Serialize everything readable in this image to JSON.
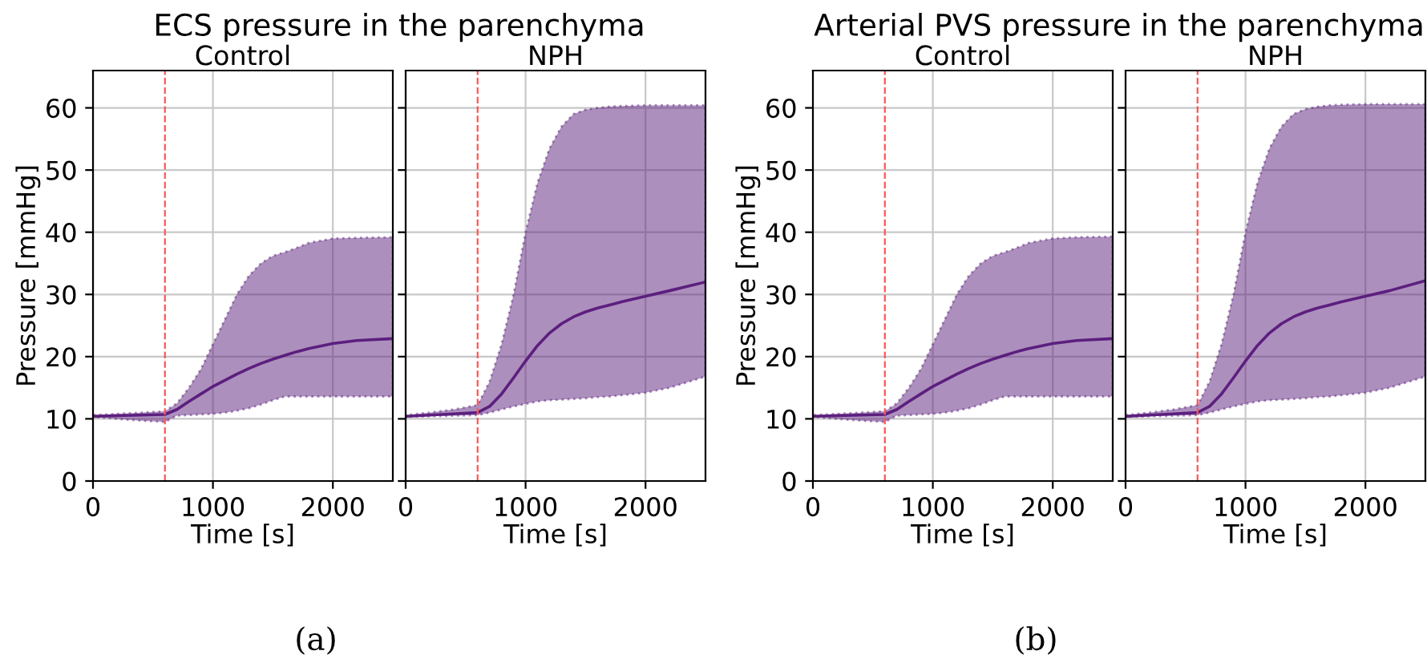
{
  "chart_data": [
    {
      "type": "line",
      "title": "ECS pressure in the parenchyma",
      "subtitle": "Control",
      "xlabel": "Time [s]",
      "ylabel": "Pressure [mmHg]",
      "annotations": [
        "(a)"
      ],
      "xlim": [
        0,
        2500
      ],
      "ylim": [
        0,
        66
      ],
      "xticks": [
        0,
        1000,
        2000
      ],
      "yticks": [
        0,
        10,
        20,
        30,
        40,
        50,
        60
      ],
      "grid": true,
      "x": [
        0,
        200,
        400,
        600,
        700,
        800,
        900,
        1000,
        1100,
        1200,
        1300,
        1400,
        1500,
        1600,
        1700,
        1800,
        2000,
        2200,
        2500
      ],
      "series": [
        {
          "color": "#5c1f7e",
          "values": [
            10.4,
            10.5,
            10.6,
            10.7,
            11.5,
            12.8,
            14.0,
            15.2,
            16.2,
            17.2,
            18.1,
            18.9,
            19.6,
            20.2,
            20.8,
            21.3,
            22.1,
            22.6,
            22.9
          ],
          "upper": [
            10.6,
            10.8,
            11.0,
            11.2,
            12.5,
            15.0,
            18.0,
            22.0,
            26.0,
            30.0,
            33.0,
            35.0,
            36.2,
            36.8,
            37.5,
            38.3,
            39.0,
            39.1,
            39.2
          ],
          "lower": [
            10.3,
            10.0,
            9.7,
            9.5,
            10.5,
            10.6,
            10.7,
            10.8,
            11.0,
            11.3,
            11.7,
            12.3,
            13.0,
            13.6,
            13.6,
            13.6,
            13.6,
            13.6,
            13.6
          ]
        }
      ],
      "ref_lines": [
        {
          "axis": "x",
          "value": 600,
          "color": "#ff5555",
          "line_style": "dashed"
        }
      ]
    },
    {
      "type": "line",
      "subtitle": "NPH",
      "xlabel": "Time [s]",
      "xlim": [
        0,
        2500
      ],
      "ylim": [
        0,
        66
      ],
      "xticks": [
        0,
        1000,
        2000
      ],
      "yticks": [
        0,
        10,
        20,
        30,
        40,
        50,
        60
      ],
      "grid": true,
      "tick_labels": "x",
      "x": [
        0,
        200,
        400,
        600,
        700,
        800,
        900,
        1000,
        1100,
        1200,
        1300,
        1400,
        1500,
        1600,
        1700,
        1800,
        2000,
        2200,
        2500
      ],
      "series": [
        {
          "color": "#5c1f7e",
          "values": [
            10.4,
            10.6,
            10.8,
            11.0,
            12.0,
            14.0,
            16.6,
            19.3,
            21.8,
            23.8,
            25.3,
            26.4,
            27.2,
            27.8,
            28.3,
            28.8,
            29.7,
            30.6,
            32.0
          ],
          "upper": [
            10.6,
            11.0,
            11.5,
            12.2,
            16.0,
            22.0,
            30.0,
            40.0,
            48.0,
            53.5,
            57.0,
            59.0,
            59.7,
            60.0,
            60.2,
            60.3,
            60.4,
            60.4,
            60.4
          ],
          "lower": [
            10.3,
            10.4,
            10.5,
            10.6,
            11.0,
            11.5,
            12.0,
            12.4,
            12.8,
            13.0,
            13.1,
            13.2,
            13.3,
            13.5,
            13.6,
            13.8,
            14.2,
            15.0,
            16.8
          ]
        }
      ],
      "ref_lines": [
        {
          "axis": "x",
          "value": 600,
          "color": "#ff5555",
          "line_style": "dashed"
        }
      ]
    },
    {
      "type": "line",
      "title": "Arterial PVS pressure in the parenchyma",
      "subtitle": "Control",
      "xlabel": "Time [s]",
      "ylabel": "Pressure [mmHg]",
      "annotations": [
        "(b)"
      ],
      "xlim": [
        0,
        2500
      ],
      "ylim": [
        0,
        66
      ],
      "xticks": [
        0,
        1000,
        2000
      ],
      "yticks": [
        0,
        10,
        20,
        30,
        40,
        50,
        60
      ],
      "grid": true,
      "x": [
        0,
        200,
        400,
        600,
        700,
        800,
        900,
        1000,
        1100,
        1200,
        1300,
        1400,
        1500,
        1600,
        1700,
        1800,
        2000,
        2200,
        2500
      ],
      "series": [
        {
          "color": "#5c1f7e",
          "values": [
            10.4,
            10.5,
            10.6,
            10.7,
            11.5,
            12.8,
            14.0,
            15.2,
            16.2,
            17.2,
            18.1,
            18.9,
            19.6,
            20.2,
            20.8,
            21.3,
            22.1,
            22.6,
            22.9
          ],
          "upper": [
            10.6,
            10.8,
            11.0,
            11.2,
            12.5,
            15.0,
            18.0,
            22.0,
            26.0,
            30.0,
            33.0,
            35.0,
            36.2,
            36.8,
            37.5,
            38.3,
            39.0,
            39.2,
            39.3
          ],
          "lower": [
            10.3,
            10.0,
            9.7,
            9.5,
            10.5,
            10.6,
            10.7,
            10.8,
            11.0,
            11.3,
            11.7,
            12.3,
            13.0,
            13.6,
            13.6,
            13.6,
            13.6,
            13.6,
            13.6
          ]
        }
      ],
      "ref_lines": [
        {
          "axis": "x",
          "value": 600,
          "color": "#ff5555",
          "line_style": "dashed"
        }
      ]
    },
    {
      "type": "line",
      "subtitle": "NPH",
      "xlabel": "Time [s]",
      "xlim": [
        0,
        2500
      ],
      "ylim": [
        0,
        66
      ],
      "xticks": [
        0,
        1000,
        2000
      ],
      "yticks": [
        0,
        10,
        20,
        30,
        40,
        50,
        60
      ],
      "grid": true,
      "tick_labels": "x",
      "x": [
        0,
        200,
        400,
        600,
        700,
        800,
        900,
        1000,
        1100,
        1200,
        1300,
        1400,
        1500,
        1600,
        1700,
        1800,
        2000,
        2200,
        2500
      ],
      "series": [
        {
          "color": "#5c1f7e",
          "values": [
            10.4,
            10.6,
            10.8,
            11.0,
            12.0,
            14.0,
            16.6,
            19.3,
            21.8,
            23.8,
            25.3,
            26.4,
            27.2,
            27.8,
            28.3,
            28.8,
            29.7,
            30.6,
            32.2
          ],
          "upper": [
            10.6,
            11.0,
            11.5,
            12.2,
            16.0,
            22.0,
            30.0,
            40.0,
            48.0,
            53.5,
            57.0,
            59.0,
            59.8,
            60.2,
            60.4,
            60.5,
            60.6,
            60.6,
            60.6
          ],
          "lower": [
            10.3,
            10.4,
            10.5,
            10.6,
            11.0,
            11.5,
            12.0,
            12.4,
            12.8,
            13.0,
            13.1,
            13.2,
            13.3,
            13.5,
            13.6,
            13.8,
            14.2,
            15.0,
            16.8
          ]
        }
      ],
      "ref_lines": [
        {
          "axis": "x",
          "value": 600,
          "color": "#ff5555",
          "line_style": "dashed"
        }
      ]
    }
  ]
}
